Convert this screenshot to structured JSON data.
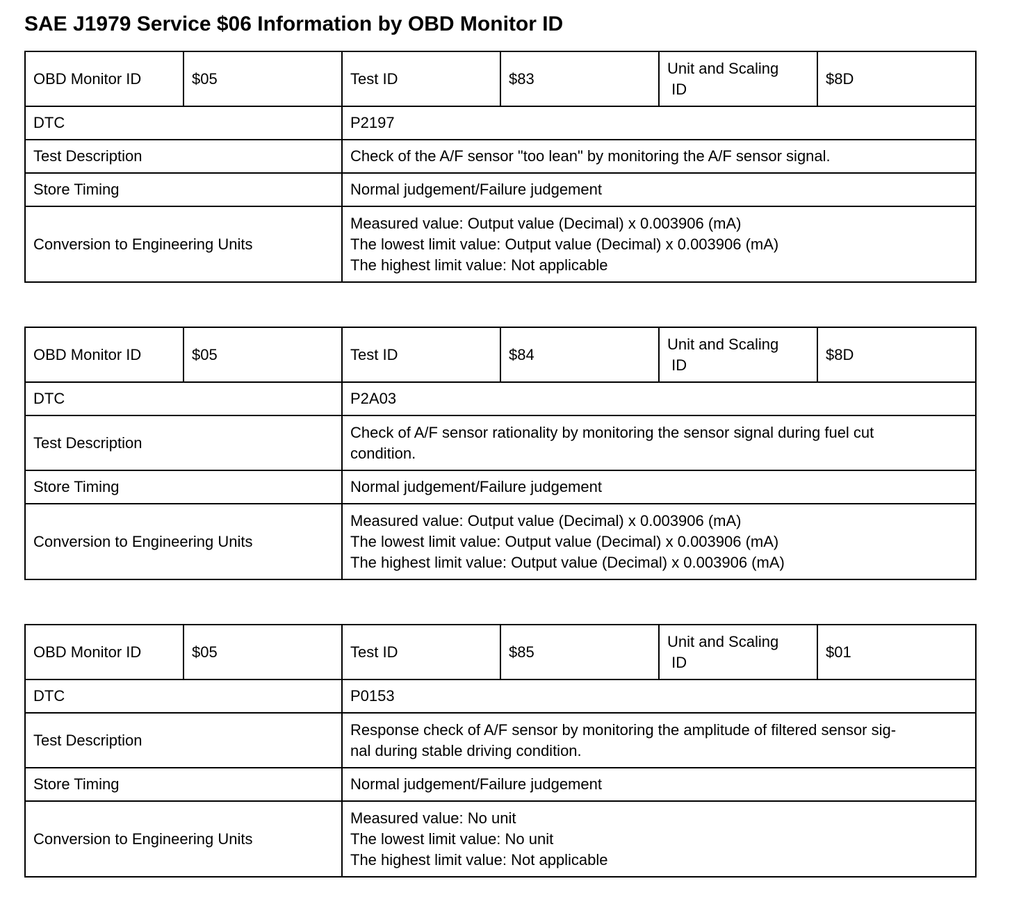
{
  "title": "SAE J1979 Service $06 Information by OBD Monitor ID",
  "labels": {
    "obd_monitor_id": "OBD Monitor ID",
    "test_id": "Test ID",
    "unit_scaling_id_lines": [
      "Unit and Scaling",
      " ID"
    ],
    "dtc": "DTC",
    "test_description": "Test Description",
    "store_timing": "Store Timing",
    "conversion": "Conversion to Engineering Units"
  },
  "tables": [
    {
      "obd_monitor_id": "$05",
      "test_id": "$83",
      "unit_scaling_id": "$8D",
      "dtc": "P2197",
      "description_lines": [
        "Check of the A/F sensor \"too lean\" by monitoring the A/F sensor signal."
      ],
      "store_timing": "Normal judgement/Failure judgement",
      "conversion_lines": [
        "Measured value: Output value (Decimal) x 0.003906 (mA)",
        "The lowest limit value: Output value (Decimal) x 0.003906 (mA)",
        "The highest limit value: Not applicable"
      ]
    },
    {
      "obd_monitor_id": "$05",
      "test_id": "$84",
      "unit_scaling_id": "$8D",
      "dtc": "P2A03",
      "description_lines": [
        "Check of A/F sensor rationality by monitoring the sensor signal during fuel cut",
        "condition."
      ],
      "store_timing": "Normal judgement/Failure judgement",
      "conversion_lines": [
        "Measured value: Output value (Decimal) x 0.003906 (mA)",
        "The lowest limit value: Output value (Decimal) x 0.003906 (mA)",
        "The highest limit value: Output value (Decimal) x 0.003906 (mA)"
      ]
    },
    {
      "obd_monitor_id": "$05",
      "test_id": "$85",
      "unit_scaling_id": "$01",
      "dtc": "P0153",
      "description_lines": [
        "Response check of A/F sensor by monitoring the amplitude of filtered sensor sig-",
        "nal during stable driving condition."
      ],
      "store_timing": "Normal judgement/Failure judgement",
      "conversion_lines": [
        "Measured value: No unit",
        "The lowest limit value: No unit",
        "The highest limit value: Not applicable"
      ]
    }
  ]
}
